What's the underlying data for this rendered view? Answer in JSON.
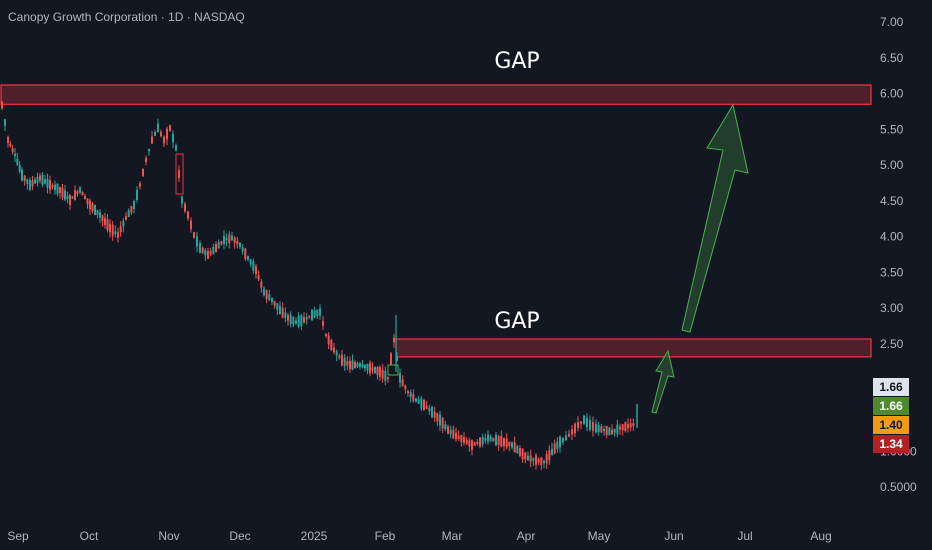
{
  "header": {
    "title": "Canopy Growth Corporation · 1D · NASDAQ"
  },
  "chart_data": {
    "type": "candlestick",
    "y_ticks": [
      "7.00",
      "6.50",
      "6.00",
      "5.50",
      "5.00",
      "4.50",
      "4.00",
      "3.50",
      "3.00",
      "2.50",
      "1.0000",
      "0.5000"
    ],
    "y_tick_values": [
      7.0,
      6.5,
      6.0,
      5.5,
      5.0,
      4.5,
      4.0,
      3.5,
      3.0,
      2.5,
      1.0,
      0.5
    ],
    "x_ticks": [
      "Sep",
      "Oct",
      "Nov",
      "Dec",
      "2025",
      "Feb",
      "Mar",
      "Apr",
      "May",
      "Jun",
      "Jul",
      "Aug"
    ],
    "ylim": [
      0.27,
      7.25
    ],
    "annotations": [
      {
        "label": "GAP",
        "type": "zone",
        "low": 5.85,
        "high": 6.12
      },
      {
        "label": "GAP",
        "type": "zone",
        "low": 2.32,
        "high": 2.57
      }
    ],
    "price_badges": [
      {
        "value": "1.66",
        "bg": "#e0e3eb",
        "fg": "#131722"
      },
      {
        "value": "1.66",
        "bg": "#4f8a2e",
        "fg": "#ffffff"
      },
      {
        "value": "1.40",
        "bg": "#f39c12",
        "fg": "#131722"
      },
      {
        "value": "1.34",
        "bg": "#b22222",
        "fg": "#ffffff"
      }
    ],
    "colors": {
      "up": "#26a69a",
      "down": "#ef5350",
      "zone": "#f23645",
      "arrow": "#2e5e34"
    }
  }
}
